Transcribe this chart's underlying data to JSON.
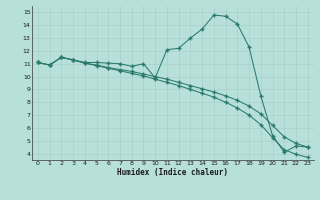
{
  "line1_x": [
    0,
    1,
    2,
    3,
    4,
    5,
    6,
    7,
    8,
    9,
    10,
    11,
    12,
    13,
    14,
    15,
    16,
    17,
    18,
    19,
    20,
    21,
    22,
    23
  ],
  "line1_y": [
    11.1,
    10.9,
    11.5,
    11.3,
    11.1,
    11.1,
    11.05,
    11.0,
    10.8,
    11.0,
    9.9,
    12.1,
    12.2,
    13.0,
    13.7,
    14.8,
    14.7,
    14.1,
    12.3,
    8.5,
    5.4,
    4.1,
    4.6,
    4.5
  ],
  "line2_x": [
    0,
    1,
    2,
    3,
    4,
    5,
    6,
    7,
    8,
    9,
    10,
    11,
    12,
    13,
    14,
    15,
    16,
    17,
    18,
    19,
    20,
    21,
    22,
    23
  ],
  "line2_y": [
    11.1,
    10.9,
    11.5,
    11.3,
    11.05,
    10.9,
    10.7,
    10.55,
    10.4,
    10.2,
    10.0,
    9.8,
    9.55,
    9.3,
    9.05,
    8.8,
    8.5,
    8.15,
    7.7,
    7.1,
    6.2,
    5.3,
    4.8,
    4.5
  ],
  "line3_x": [
    0,
    1,
    2,
    3,
    4,
    5,
    6,
    7,
    8,
    9,
    10,
    11,
    12,
    13,
    14,
    15,
    16,
    17,
    18,
    19,
    20,
    21,
    22,
    23
  ],
  "line3_y": [
    11.1,
    10.9,
    11.5,
    11.3,
    11.05,
    10.85,
    10.65,
    10.45,
    10.25,
    10.05,
    9.8,
    9.55,
    9.3,
    9.0,
    8.7,
    8.4,
    8.0,
    7.55,
    7.0,
    6.25,
    5.25,
    4.3,
    3.95,
    3.7
  ],
  "xlabel": "Humidex (Indice chaleur)",
  "xlim": [
    -0.5,
    23.5
  ],
  "ylim": [
    3.5,
    15.5
  ],
  "yticks": [
    4,
    5,
    6,
    7,
    8,
    9,
    10,
    11,
    12,
    13,
    14,
    15
  ],
  "xticks": [
    0,
    1,
    2,
    3,
    4,
    5,
    6,
    7,
    8,
    9,
    10,
    11,
    12,
    13,
    14,
    15,
    16,
    17,
    18,
    19,
    20,
    21,
    22,
    23
  ],
  "line_color": "#2a7a6a",
  "bg_color": "#b8e0db",
  "grid_color": "#c8e8e4",
  "fig_bg": "#b8e0db"
}
